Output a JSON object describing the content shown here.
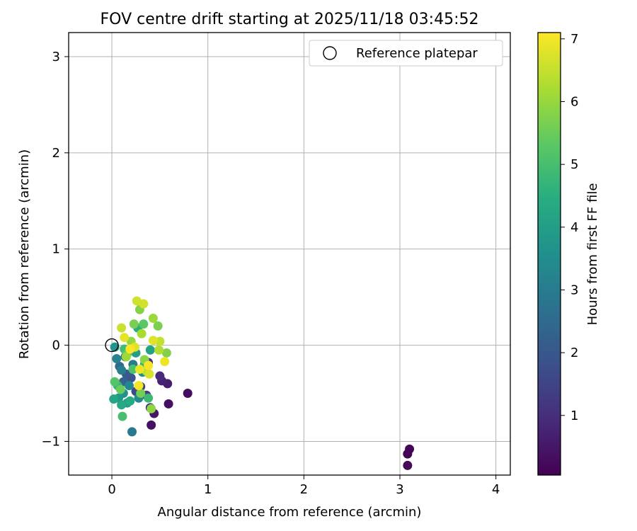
{
  "chart_data": {
    "type": "scatter",
    "title": "FOV centre drift starting at 2025/11/18 03:45:52",
    "xlabel": "Angular distance from reference (arcmin)",
    "ylabel": "Rotation from reference (arcmin)",
    "xlim": [
      -0.45,
      4.15
    ],
    "ylim": [
      -1.35,
      3.25
    ],
    "xticks": [
      0,
      1,
      2,
      3,
      4
    ],
    "yticks": [
      -1,
      0,
      1,
      2,
      3
    ],
    "ytick_labels": [
      "−1",
      "0",
      "1",
      "2",
      "3"
    ],
    "grid": true,
    "legend": {
      "location": "top-right",
      "entries": [
        {
          "label": "Reference platepar",
          "marker": "open-circle"
        }
      ]
    },
    "reference_point": {
      "x": 0,
      "y": 0
    },
    "colorbar": {
      "label": "Hours from first FF file",
      "range": [
        0.05,
        7.1
      ],
      "ticks": [
        1,
        2,
        3,
        4,
        5,
        6,
        7
      ],
      "colormap": "viridis"
    },
    "points": [
      {
        "x": 3.08,
        "y": -1.13,
        "c": 0.1
      },
      {
        "x": 3.1,
        "y": -1.08,
        "c": 0.15
      },
      {
        "x": 3.08,
        "y": -1.25,
        "c": 0.2
      },
      {
        "x": 0.79,
        "y": -0.5,
        "c": 0.3
      },
      {
        "x": 0.59,
        "y": -0.61,
        "c": 0.35
      },
      {
        "x": 0.41,
        "y": -0.83,
        "c": 0.4
      },
      {
        "x": 0.44,
        "y": -0.71,
        "c": 0.5
      },
      {
        "x": 0.58,
        "y": -0.4,
        "c": 0.6
      },
      {
        "x": 0.52,
        "y": -0.37,
        "c": 0.75
      },
      {
        "x": 0.5,
        "y": -0.32,
        "c": 0.9
      },
      {
        "x": 0.4,
        "y": -0.65,
        "c": 1.0
      },
      {
        "x": 0.38,
        "y": -0.18,
        "c": 1.1
      },
      {
        "x": 0.36,
        "y": -0.52,
        "c": 1.3
      },
      {
        "x": 0.3,
        "y": -0.43,
        "c": 1.5
      },
      {
        "x": 0.25,
        "y": -0.48,
        "c": 1.7
      },
      {
        "x": 0.2,
        "y": -0.34,
        "c": 1.9
      },
      {
        "x": 0.15,
        "y": -0.3,
        "c": 2.1
      },
      {
        "x": 0.12,
        "y": -0.38,
        "c": 2.3
      },
      {
        "x": 0.08,
        "y": -0.22,
        "c": 2.5
      },
      {
        "x": 0.14,
        "y": -0.12,
        "c": 2.7
      },
      {
        "x": 0.21,
        "y": -0.9,
        "c": 2.9
      },
      {
        "x": 0.22,
        "y": -0.2,
        "c": 3.0
      },
      {
        "x": 0.1,
        "y": -0.26,
        "c": 3.1
      },
      {
        "x": 0.05,
        "y": -0.14,
        "c": 3.2
      },
      {
        "x": 0.18,
        "y": -0.42,
        "c": 3.3
      },
      {
        "x": 0.28,
        "y": -0.55,
        "c": 3.4
      },
      {
        "x": 0.32,
        "y": -0.28,
        "c": 3.5
      },
      {
        "x": 0.12,
        "y": -0.5,
        "c": 3.6
      },
      {
        "x": 0.03,
        "y": -0.02,
        "c": 3.7
      },
      {
        "x": 0.07,
        "y": -0.55,
        "c": 3.8
      },
      {
        "x": 0.16,
        "y": -0.6,
        "c": 3.9
      },
      {
        "x": 0.25,
        "y": -0.08,
        "c": 4.0
      },
      {
        "x": 0.4,
        "y": -0.05,
        "c": 4.1
      },
      {
        "x": 0.02,
        "y": -0.56,
        "c": 4.2
      },
      {
        "x": 0.1,
        "y": -0.62,
        "c": 4.3
      },
      {
        "x": 0.19,
        "y": -0.58,
        "c": 4.4
      },
      {
        "x": 0.27,
        "y": 0.18,
        "c": 4.5
      },
      {
        "x": 0.34,
        "y": -0.2,
        "c": 4.6
      },
      {
        "x": 0.06,
        "y": -0.42,
        "c": 4.7
      },
      {
        "x": 0.38,
        "y": -0.55,
        "c": 4.8
      },
      {
        "x": 0.13,
        "y": -0.04,
        "c": 4.9
      },
      {
        "x": 0.11,
        "y": -0.74,
        "c": 5.0
      },
      {
        "x": 0.22,
        "y": -0.25,
        "c": 5.1
      },
      {
        "x": 0.03,
        "y": -0.38,
        "c": 5.2
      },
      {
        "x": 0.33,
        "y": 0.22,
        "c": 5.3
      },
      {
        "x": 0.16,
        "y": -0.09,
        "c": 5.4
      },
      {
        "x": 0.09,
        "y": -0.46,
        "c": 5.5
      },
      {
        "x": 0.3,
        "y": -0.5,
        "c": 5.6
      },
      {
        "x": 0.23,
        "y": 0.22,
        "c": 5.65
      },
      {
        "x": 0.48,
        "y": 0.2,
        "c": 5.7
      },
      {
        "x": 0.57,
        "y": -0.08,
        "c": 5.75
      },
      {
        "x": 0.29,
        "y": 0.37,
        "c": 5.8
      },
      {
        "x": 0.34,
        "y": -0.15,
        "c": 5.85
      },
      {
        "x": 0.41,
        "y": -0.66,
        "c": 5.9
      },
      {
        "x": 0.2,
        "y": 0.04,
        "c": 6.0
      },
      {
        "x": 0.43,
        "y": 0.28,
        "c": 6.05
      },
      {
        "x": 0.15,
        "y": -0.12,
        "c": 6.1
      },
      {
        "x": 0.31,
        "y": 0.12,
        "c": 6.2
      },
      {
        "x": 0.49,
        "y": -0.05,
        "c": 6.3
      },
      {
        "x": 0.36,
        "y": -0.27,
        "c": 6.4
      },
      {
        "x": 0.5,
        "y": 0.04,
        "c": 6.5
      },
      {
        "x": 0.1,
        "y": 0.18,
        "c": 6.55
      },
      {
        "x": 0.26,
        "y": 0.46,
        "c": 6.6
      },
      {
        "x": 0.33,
        "y": 0.43,
        "c": 6.65
      },
      {
        "x": 0.39,
        "y": -0.3,
        "c": 6.7
      },
      {
        "x": 0.24,
        "y": -0.02,
        "c": 6.75
      },
      {
        "x": 0.43,
        "y": 0.05,
        "c": 6.8
      },
      {
        "x": 0.13,
        "y": 0.08,
        "c": 6.85
      },
      {
        "x": 0.29,
        "y": -0.25,
        "c": 6.9
      },
      {
        "x": 0.55,
        "y": -0.17,
        "c": 6.95
      },
      {
        "x": 0.28,
        "y": -0.42,
        "c": 7.0
      },
      {
        "x": 0.38,
        "y": -0.21,
        "c": 7.05
      },
      {
        "x": 0.19,
        "y": -0.04,
        "c": 7.1
      }
    ]
  }
}
